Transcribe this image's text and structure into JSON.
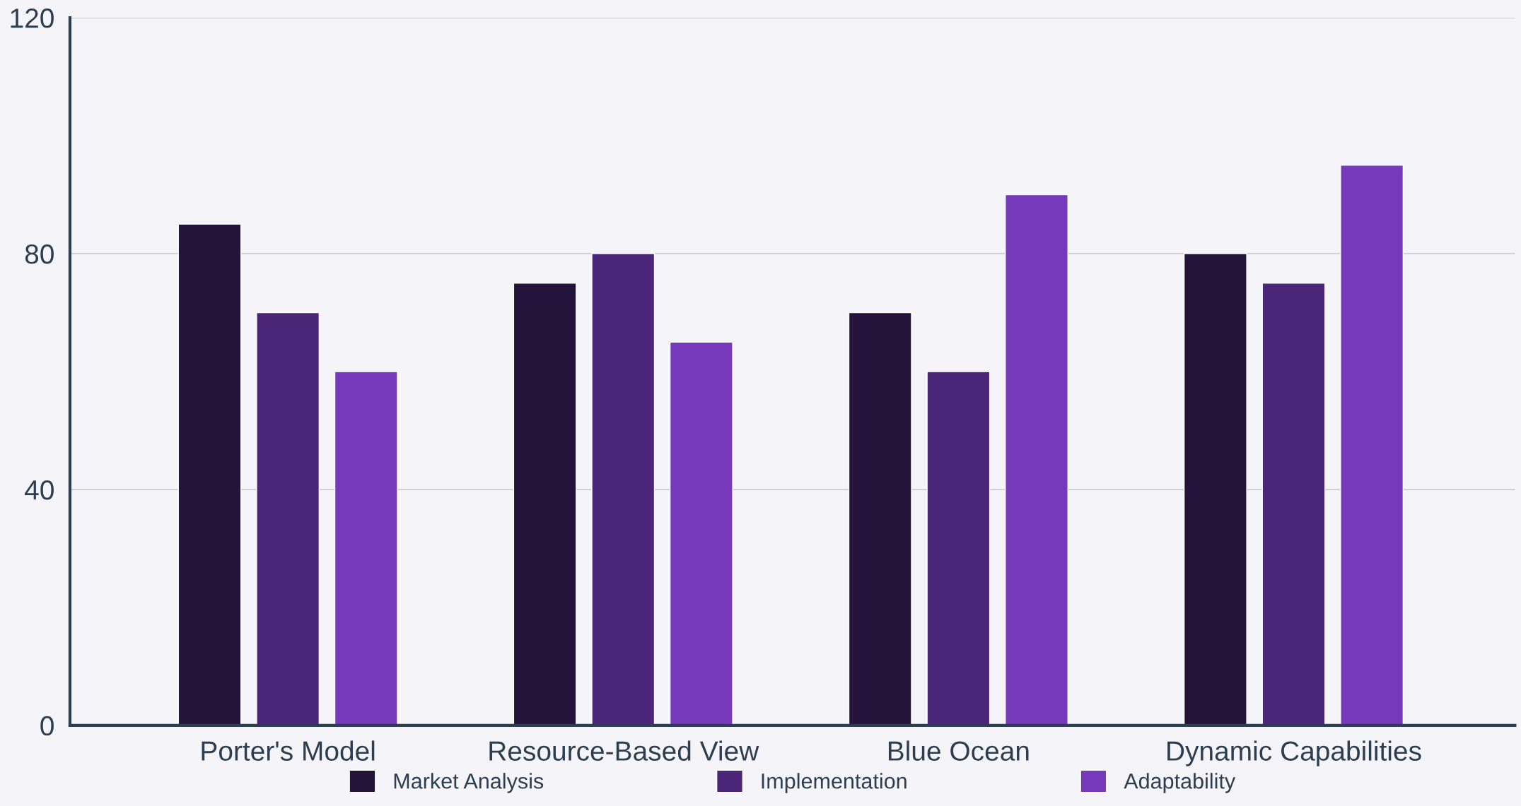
{
  "chart_data": {
    "type": "bar",
    "categories": [
      "Porter's Model",
      "Resource-Based View",
      "Blue Ocean",
      "Dynamic Capabilities"
    ],
    "series": [
      {
        "name": "Market Analysis",
        "color": "#24133a",
        "values": [
          85,
          75,
          70,
          80
        ]
      },
      {
        "name": "Implementation",
        "color": "#4b2577",
        "values": [
          70,
          80,
          60,
          75
        ]
      },
      {
        "name": "Adaptability",
        "color": "#7639bb",
        "values": [
          60,
          65,
          90,
          95
        ]
      }
    ],
    "ylim": [
      0,
      120
    ],
    "yticks": [
      0,
      40,
      80,
      120
    ],
    "grid": "y",
    "legend": "bottom"
  }
}
